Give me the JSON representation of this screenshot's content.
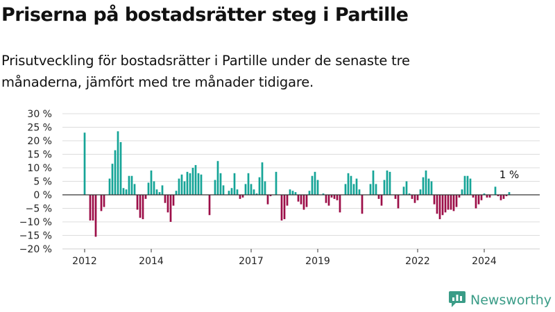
{
  "title": "Priserna på bostadsrätter steg i Partille",
  "subtitle": "Prisutveckling för bostadsrätter i Partille under de senaste tre månaderna, jämfört med tre månader tidigare.",
  "brand": {
    "name": "Newsworthy",
    "icon": "newsworthy-logo-icon"
  },
  "colors": {
    "positive": "#15a497",
    "negative": "#9c0e48",
    "gridline": "#dcdcdc",
    "zeroline": "#333333",
    "brand": "#3a9c87"
  },
  "chart_data": {
    "type": "bar",
    "ylim": [
      -20,
      30
    ],
    "grid": true,
    "y_ticks": [
      "30 %",
      "25 %",
      "20 %",
      "15 %",
      "10 %",
      "5 %",
      "0 %",
      "−5 %",
      "−10 %",
      "−15 %",
      "−20 %"
    ],
    "y_tick_values": [
      30,
      25,
      20,
      15,
      10,
      5,
      0,
      -5,
      -10,
      -15,
      -20
    ],
    "x_ticks": [
      "2012",
      "2014",
      "2017",
      "2019",
      "2022",
      "2024"
    ],
    "x_tick_values": [
      "2012-01",
      "2014-01",
      "2017-01",
      "2019-01",
      "2022-01",
      "2024-01"
    ],
    "start_month": "2012-01",
    "last_value_label": "1 %",
    "values": [
      23,
      0,
      -9.5,
      -9.5,
      -15.5,
      0,
      -6,
      -4.5,
      0,
      6,
      11.5,
      16.5,
      23.5,
      19.5,
      2.5,
      2,
      7,
      7,
      4,
      -5.5,
      -8.5,
      -9,
      -1.5,
      4.5,
      9,
      5,
      2,
      1,
      3.5,
      -3,
      -6.5,
      -10,
      -4,
      1.5,
      6,
      7.5,
      5,
      8.5,
      8,
      10,
      11,
      8,
      7.5,
      0,
      0,
      -7.5,
      0,
      5.5,
      12.5,
      8,
      3.5,
      0,
      1.5,
      2.5,
      8,
      2,
      -1.5,
      -1,
      4,
      8,
      4,
      2,
      0.5,
      6.5,
      12,
      5,
      -3.5,
      -0.5,
      0,
      8.5,
      0,
      -9.5,
      -9,
      -4,
      2,
      1.5,
      1,
      -2.5,
      -3.5,
      -5.5,
      -4.5,
      1.5,
      7,
      8.5,
      5.5,
      0,
      0.5,
      -3,
      -4,
      -1,
      -1.5,
      -2,
      -6.5,
      0,
      4,
      8,
      7,
      4,
      6,
      2,
      -7,
      0,
      0,
      4,
      9,
      4,
      -1.5,
      -4,
      5.5,
      9,
      8.5,
      0,
      -1.5,
      -5,
      0,
      3,
      5,
      0.5,
      -1.5,
      -3,
      -2,
      2,
      6.5,
      9,
      6,
      5,
      -3.5,
      -7,
      -9,
      -7.5,
      -6.5,
      -5.5,
      -5.5,
      -6,
      -4.5,
      -1,
      2,
      7,
      7,
      6,
      -1,
      -5,
      -3.5,
      -2,
      0.5,
      -1,
      -1,
      0,
      3,
      -0.5,
      -2,
      -1.5,
      -0.5,
      1
    ]
  }
}
